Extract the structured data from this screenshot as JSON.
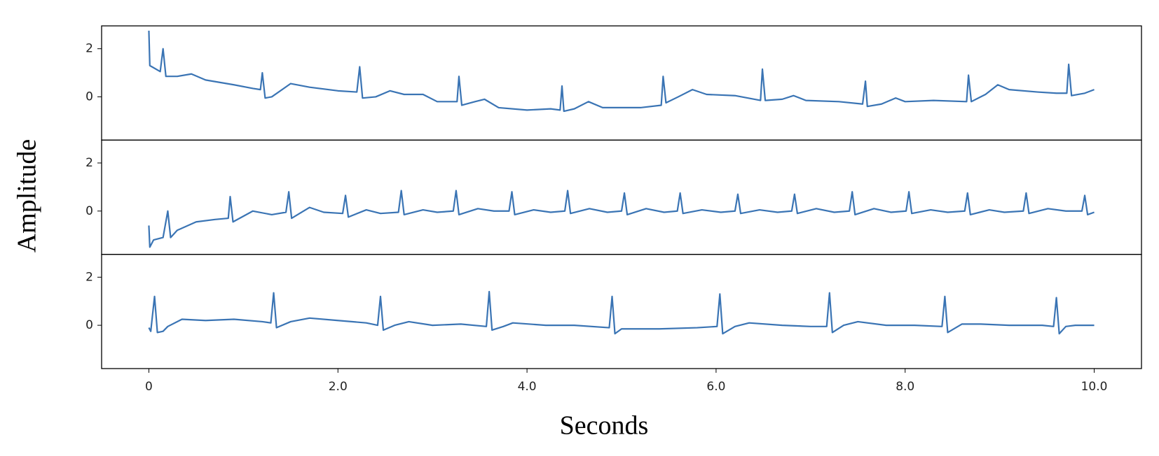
{
  "chart_data": {
    "type": "line",
    "layout": "stacked",
    "xlabel": "Seconds",
    "ylabel": "Amplitude",
    "color": "#3a74b4",
    "xlim": [
      -0.5,
      10.5
    ],
    "xticks": [
      0,
      {
        "value": 2,
        "label": "2.0"
      },
      {
        "value": 4,
        "label": "4.0"
      },
      {
        "value": 6,
        "label": "6.0"
      },
      {
        "value": 8,
        "label": "8.0"
      },
      {
        "value": 10,
        "label": "10.0"
      }
    ],
    "ylim": [
      -1.8,
      2.95
    ],
    "yticks": [
      0,
      2
    ],
    "series": [
      {
        "x": [
          0,
          0.01,
          0.12,
          0.15,
          0.18,
          0.3,
          0.45,
          0.6,
          0.9,
          1.1,
          1.18,
          1.2,
          1.23,
          1.3,
          1.5,
          1.7,
          2.0,
          2.2,
          2.23,
          2.26,
          2.4,
          2.55,
          2.7,
          2.9,
          3.05,
          3.26,
          3.28,
          3.31,
          3.45,
          3.55,
          3.7,
          4.0,
          4.25,
          4.35,
          4.37,
          4.39,
          4.5,
          4.65,
          4.8,
          5.2,
          5.42,
          5.44,
          5.47,
          5.6,
          5.75,
          5.9,
          6.2,
          6.47,
          6.49,
          6.52,
          6.7,
          6.82,
          6.95,
          7.3,
          7.55,
          7.58,
          7.6,
          7.75,
          7.9,
          8.0,
          8.3,
          8.65,
          8.67,
          8.7,
          8.85,
          8.98,
          9.1,
          9.4,
          9.6,
          9.71,
          9.73,
          9.76,
          9.9,
          10
        ],
        "values": [
          2.75,
          1.3,
          1.05,
          2.0,
          0.85,
          0.85,
          0.95,
          0.7,
          0.5,
          0.35,
          0.3,
          1.0,
          -0.05,
          0.0,
          0.55,
          0.4,
          0.25,
          0.2,
          1.25,
          -0.05,
          0.0,
          0.25,
          0.1,
          0.1,
          -0.2,
          -0.2,
          0.85,
          -0.35,
          -0.2,
          -0.1,
          -0.45,
          -0.55,
          -0.5,
          -0.55,
          0.45,
          -0.6,
          -0.5,
          -0.2,
          -0.45,
          -0.45,
          -0.35,
          0.85,
          -0.25,
          0.0,
          0.3,
          0.1,
          0.05,
          -0.15,
          1.15,
          -0.15,
          -0.1,
          0.05,
          -0.15,
          -0.2,
          -0.3,
          0.65,
          -0.4,
          -0.3,
          -0.05,
          -0.2,
          -0.15,
          -0.2,
          0.9,
          -0.2,
          0.1,
          0.5,
          0.3,
          0.2,
          0.15,
          0.15,
          1.35,
          0.05,
          0.15,
          0.3
        ]
      },
      {
        "x": [
          0,
          0.01,
          0.05,
          0.15,
          0.2,
          0.23,
          0.3,
          0.5,
          0.7,
          0.84,
          0.86,
          0.89,
          1.1,
          1.3,
          1.45,
          1.48,
          1.51,
          1.7,
          1.85,
          2.05,
          2.08,
          2.11,
          2.3,
          2.45,
          2.64,
          2.67,
          2.7,
          2.9,
          3.05,
          3.22,
          3.25,
          3.28,
          3.48,
          3.65,
          3.81,
          3.84,
          3.87,
          4.07,
          4.25,
          4.4,
          4.43,
          4.46,
          4.66,
          4.85,
          5.0,
          5.03,
          5.06,
          5.26,
          5.45,
          5.59,
          5.62,
          5.65,
          5.85,
          6.05,
          6.2,
          6.23,
          6.26,
          6.46,
          6.65,
          6.8,
          6.83,
          6.86,
          7.06,
          7.25,
          7.41,
          7.44,
          7.47,
          7.67,
          7.85,
          8.01,
          8.04,
          8.07,
          8.27,
          8.45,
          8.63,
          8.66,
          8.69,
          8.89,
          9.05,
          9.25,
          9.28,
          9.31,
          9.51,
          9.7,
          9.87,
          9.9,
          9.93,
          10.0
        ],
        "values": [
          -0.6,
          -1.5,
          -1.2,
          -1.1,
          0.0,
          -1.1,
          -0.8,
          -0.45,
          -0.35,
          -0.3,
          0.6,
          -0.45,
          0.0,
          -0.15,
          -0.05,
          0.8,
          -0.3,
          0.15,
          -0.05,
          -0.1,
          0.65,
          -0.25,
          0.05,
          -0.1,
          -0.05,
          0.85,
          -0.15,
          0.05,
          -0.05,
          0.0,
          0.85,
          -0.15,
          0.1,
          0.0,
          0.0,
          0.8,
          -0.15,
          0.05,
          -0.05,
          0.0,
          0.85,
          -0.1,
          0.1,
          -0.05,
          0.0,
          0.75,
          -0.15,
          0.1,
          -0.05,
          0.0,
          0.75,
          -0.1,
          0.05,
          -0.05,
          0.0,
          0.7,
          -0.1,
          0.05,
          -0.05,
          0.0,
          0.7,
          -0.1,
          0.1,
          -0.05,
          0.0,
          0.8,
          -0.15,
          0.1,
          -0.05,
          0.0,
          0.8,
          -0.1,
          0.05,
          -0.05,
          0.0,
          0.75,
          -0.15,
          0.05,
          -0.05,
          0.0,
          0.75,
          -0.1,
          0.1,
          0.0,
          0.0,
          0.65,
          -0.15,
          -0.05
        ]
      },
      {
        "x": [
          0,
          0.02,
          0.06,
          0.09,
          0.15,
          0.2,
          0.35,
          0.6,
          0.9,
          1.2,
          1.29,
          1.32,
          1.35,
          1.5,
          1.7,
          2.0,
          2.3,
          2.42,
          2.45,
          2.48,
          2.6,
          2.75,
          3.0,
          3.3,
          3.57,
          3.6,
          3.63,
          3.75,
          3.85,
          4.2,
          4.5,
          4.87,
          4.9,
          4.93,
          5.0,
          5.4,
          5.8,
          6.01,
          6.04,
          6.07,
          6.2,
          6.35,
          6.7,
          7.0,
          7.17,
          7.2,
          7.23,
          7.35,
          7.5,
          7.8,
          8.1,
          8.39,
          8.42,
          8.45,
          8.6,
          8.8,
          9.1,
          9.45,
          9.57,
          9.6,
          9.63,
          9.7,
          9.8,
          10
        ],
        "values": [
          -0.1,
          -0.25,
          1.2,
          -0.3,
          -0.25,
          -0.05,
          0.25,
          0.2,
          0.25,
          0.15,
          0.1,
          1.35,
          -0.1,
          0.15,
          0.3,
          0.2,
          0.1,
          0.0,
          1.2,
          -0.2,
          0.0,
          0.15,
          0.0,
          0.05,
          -0.05,
          1.4,
          -0.2,
          -0.05,
          0.1,
          0.0,
          0.0,
          -0.1,
          1.2,
          -0.35,
          -0.15,
          -0.15,
          -0.1,
          -0.05,
          1.3,
          -0.35,
          -0.05,
          0.1,
          0.0,
          -0.05,
          -0.05,
          1.35,
          -0.3,
          0.0,
          0.15,
          0.0,
          0.0,
          -0.05,
          1.2,
          -0.3,
          0.05,
          0.05,
          0.0,
          0.0,
          -0.05,
          1.15,
          -0.35,
          -0.05,
          0.0,
          0.0
        ]
      }
    ]
  }
}
